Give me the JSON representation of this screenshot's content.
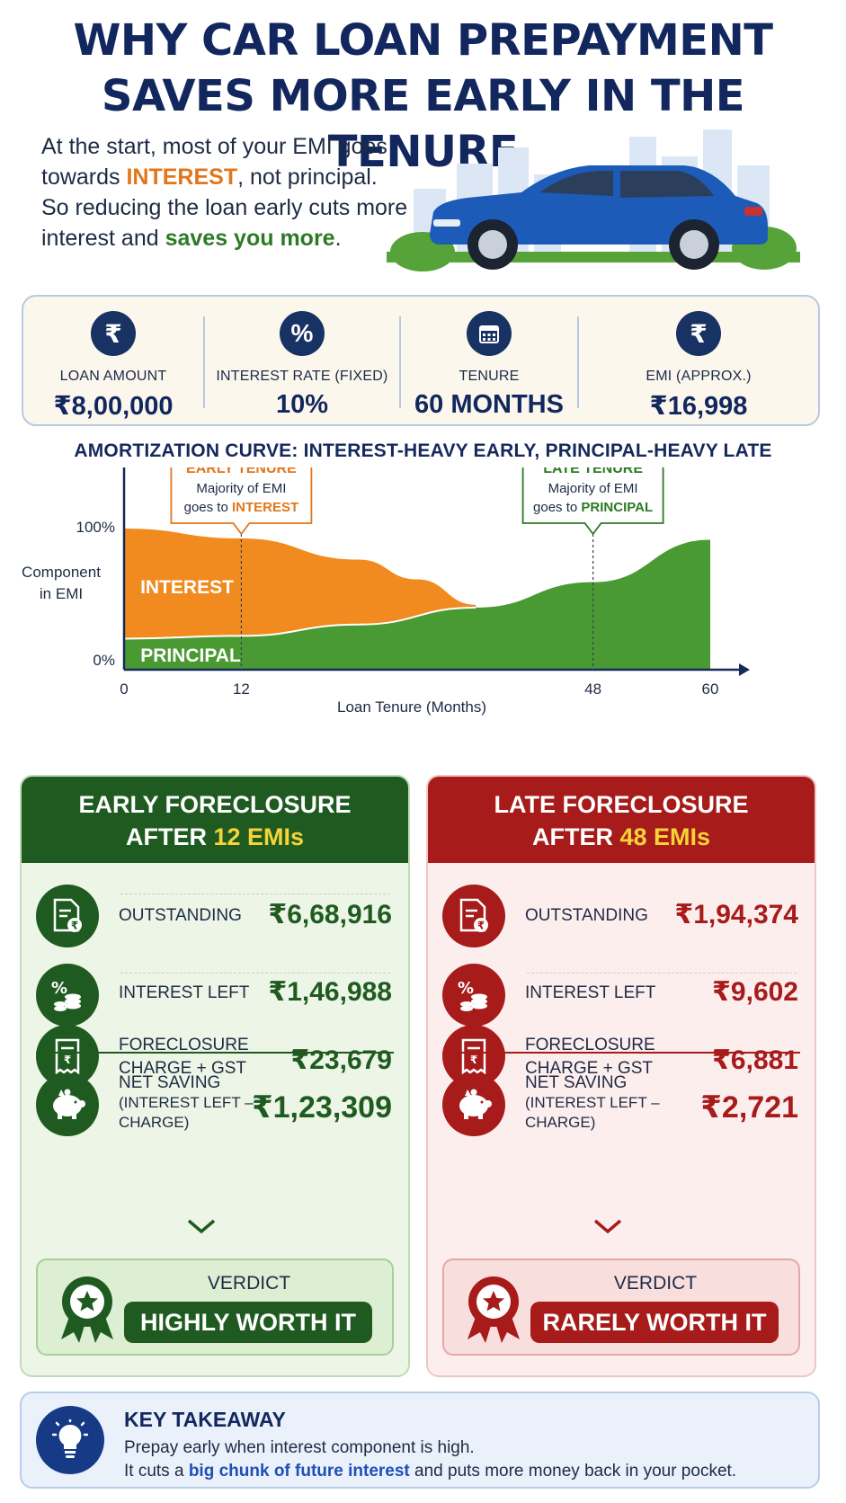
{
  "title": {
    "line1": "WHY CAR LOAN PREPAYMENT",
    "line2": "SAVES MORE EARLY IN THE TENURE"
  },
  "intro": {
    "p1_a": "At the start, most of your EMI goes",
    "p1_b": "towards ",
    "p1_highlight": "INTEREST",
    "p1_c": ", not principal.",
    "p2_a": "So reducing the loan early cuts more",
    "p2_b": "interest and ",
    "p2_highlight": "saves you more",
    "p2_c": "."
  },
  "stats": [
    {
      "icon": "rupee-icon",
      "glyph": "₹",
      "label": "LOAN AMOUNT",
      "value": "₹8,00,000"
    },
    {
      "icon": "percent-icon",
      "glyph": "%",
      "label": "INTEREST RATE (FIXED)",
      "value": "10%"
    },
    {
      "icon": "calendar-icon",
      "glyph": "",
      "label": "TENURE",
      "value": "60 MONTHS"
    },
    {
      "icon": "rupee-icon",
      "glyph": "₹",
      "label": "EMI (APPROX.)",
      "value": "₹16,998"
    }
  ],
  "chart_title": "AMORTIZATION CURVE: INTEREST-HEAVY EARLY, PRINCIPAL-HEAVY LATE",
  "chart_data": {
    "type": "area",
    "title": "AMORTIZATION CURVE: INTEREST-HEAVY EARLY, PRINCIPAL-HEAVY LATE",
    "xlabel": "Loan Tenure (Months)",
    "ylabel": "Component in EMI",
    "ylabel_lines": [
      "Component",
      "in EMI"
    ],
    "xlim": [
      0,
      60
    ],
    "ylim": [
      0,
      100
    ],
    "x_ticks": [
      0,
      12,
      48,
      60
    ],
    "y_tick_labels": [
      "0%",
      "100%"
    ],
    "series": [
      {
        "name": "PRINCIPAL",
        "color": "#4a9a34",
        "x": [
          0,
          12,
          24,
          36,
          48,
          60
        ],
        "values": [
          22,
          24,
          32,
          44,
          62,
          92
        ]
      },
      {
        "name": "INTEREST",
        "color": "#f18a1f",
        "x": [
          0,
          12,
          24,
          30,
          36
        ],
        "values": [
          100,
          93,
          78,
          64,
          46
        ]
      }
    ],
    "annotations": [
      {
        "x": 12,
        "title": "EARLY TENURE",
        "line1": "Majority of EMI",
        "line2_a": "goes to ",
        "line2_highlight": "INTEREST",
        "color": "#e2761b"
      },
      {
        "x": 48,
        "title": "LATE TENURE",
        "line1": "Majority of EMI",
        "line2_a": "goes to ",
        "line2_highlight": "PRINCIPAL",
        "color": "#2d7a25"
      }
    ],
    "grid": false
  },
  "early": {
    "head_a": "EARLY FORECLOSURE",
    "head_b": "AFTER ",
    "head_hl": "12 EMIs",
    "outstanding_label": "OUTSTANDING",
    "outstanding": "₹6,68,916",
    "interest_label": "INTEREST LEFT",
    "interest": "₹1,46,988",
    "charge_label_1": "FORECLOSURE",
    "charge_label_2": "CHARGE + GST",
    "charge": "₹23,679",
    "net_label_1": "NET SAVING",
    "net_label_2": "(INTEREST LEFT –",
    "net_label_3": "CHARGE)",
    "net": "₹1,23,309",
    "verdict_label": "VERDICT",
    "verdict": "HIGHLY WORTH IT"
  },
  "late": {
    "head_a": "LATE FORECLOSURE",
    "head_b": "AFTER ",
    "head_hl": "48 EMIs",
    "outstanding_label": "OUTSTANDING",
    "outstanding": "₹1,94,374",
    "interest_label": "INTEREST LEFT",
    "interest": "₹9,602",
    "charge_label_1": "FORECLOSURE",
    "charge_label_2": "CHARGE + GST",
    "charge": "₹6,881",
    "net_label_1": "NET SAVING",
    "net_label_2": "(INTEREST LEFT –",
    "net_label_3": "CHARGE)",
    "net": "₹2,721",
    "verdict_label": "VERDICT",
    "verdict": "RARELY WORTH IT"
  },
  "takeaway": {
    "title": "KEY TAKEAWAY",
    "line1": "Prepay early when interest component is high.",
    "line2_a": "It cuts a ",
    "line2_hl": "big chunk of future interest",
    "line2_b": " and puts more money back in your pocket."
  },
  "colors": {
    "navy": "#12275e",
    "orange": "#f18a1f",
    "green": "#1f5b20",
    "red": "#a71b1b",
    "yellow": "#f6d337"
  }
}
